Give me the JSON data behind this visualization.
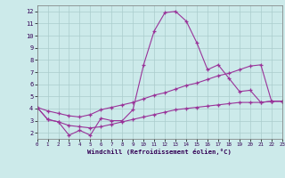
{
  "bg_color": "#cceaea",
  "grid_color": "#aacccc",
  "line_color": "#993399",
  "xlabel": "Windchill (Refroidissement éolien,°C)",
  "xlim": [
    0,
    23
  ],
  "ylim": [
    1.5,
    12.5
  ],
  "xticks": [
    0,
    1,
    2,
    3,
    4,
    5,
    6,
    7,
    8,
    9,
    10,
    11,
    12,
    13,
    14,
    15,
    16,
    17,
    18,
    19,
    20,
    21,
    22,
    23
  ],
  "yticks": [
    2,
    3,
    4,
    5,
    6,
    7,
    8,
    9,
    10,
    11,
    12
  ],
  "s1_x": [
    0,
    1,
    2,
    3,
    4,
    5,
    6,
    7,
    8,
    9,
    10,
    11,
    12,
    13,
    14,
    15,
    16,
    17,
    18,
    19,
    20,
    21,
    22,
    23
  ],
  "s1_y": [
    4.1,
    3.1,
    2.9,
    1.8,
    2.2,
    1.8,
    3.2,
    3.0,
    3.0,
    3.9,
    7.6,
    10.4,
    11.9,
    12.0,
    11.2,
    9.4,
    7.2,
    7.6,
    6.5,
    5.4,
    5.5,
    4.5,
    4.6,
    4.6
  ],
  "s2_x": [
    0,
    1,
    2,
    3,
    4,
    5,
    6,
    7,
    8,
    9,
    10,
    11,
    12,
    13,
    14,
    15,
    16,
    17,
    18,
    19,
    20,
    21,
    22,
    23
  ],
  "s2_y": [
    4.1,
    3.8,
    3.6,
    3.4,
    3.3,
    3.5,
    3.9,
    4.1,
    4.3,
    4.5,
    4.8,
    5.1,
    5.3,
    5.6,
    5.9,
    6.1,
    6.4,
    6.7,
    6.9,
    7.2,
    7.5,
    7.6,
    4.6,
    4.6
  ],
  "s3_x": [
    0,
    1,
    2,
    3,
    4,
    5,
    6,
    7,
    8,
    9,
    10,
    11,
    12,
    13,
    14,
    15,
    16,
    17,
    18,
    19,
    20,
    21,
    22,
    23
  ],
  "s3_y": [
    4.1,
    3.1,
    2.9,
    2.6,
    2.5,
    2.4,
    2.5,
    2.7,
    2.9,
    3.1,
    3.3,
    3.5,
    3.7,
    3.9,
    4.0,
    4.1,
    4.2,
    4.3,
    4.4,
    4.5,
    4.5,
    4.5,
    4.6,
    4.6
  ]
}
